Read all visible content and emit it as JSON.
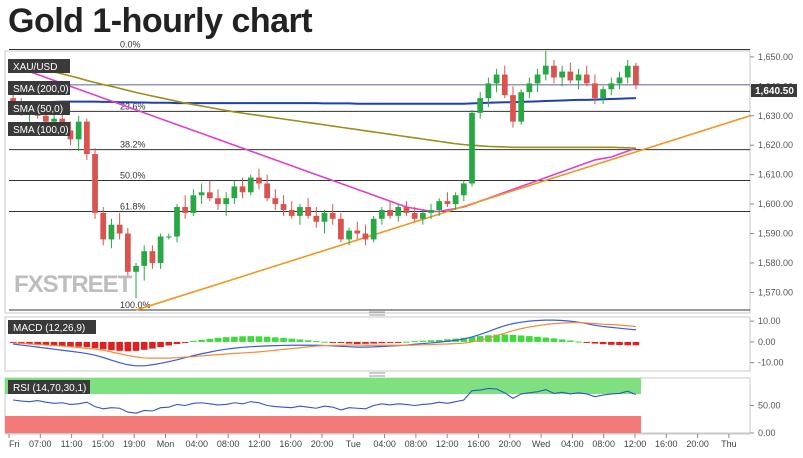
{
  "title": "Gold 1-hourly chart",
  "colors": {
    "up": "#27a844",
    "down": "#d9534f",
    "sma50": "#e040d0",
    "sma100": "#9c8f1a",
    "sma200": "#1f3fb0",
    "trend": "#f0961e",
    "macd_line": "#3b5bdb",
    "signal_line": "#f08c3c",
    "rsi_line": "#2f57c9",
    "overbought": "#7ee07e",
    "oversold": "#f47a7a"
  },
  "legend": {
    "symbol": "XAU/USD",
    "sma200": "SMA (200,0)",
    "sma50": "SMA (50,0)",
    "sma100": "SMA (100,0)"
  },
  "watermark": "FXSTREET",
  "price_label": "1,640.50",
  "chart_data": [
    {
      "type": "candlestick",
      "title": "Gold 1-hourly chart",
      "ylim": [
        1563,
        1652
      ],
      "ytick_labels": [
        "1,650.00",
        "1,640.00",
        "1,630.00",
        "1,620.00",
        "1,610.00",
        "1,600.00",
        "1,590.00",
        "1,580.00",
        "1,570.00"
      ],
      "ytick_values": [
        1650,
        1640,
        1630,
        1620,
        1610,
        1600,
        1590,
        1580,
        1570
      ],
      "x_ticks": [
        "Fri",
        "07:00",
        "11:00",
        "15:00",
        "19:00",
        "Mon",
        "04:00",
        "08:00",
        "12:00",
        "16:00",
        "20:00",
        "Tue",
        "04:00",
        "08:00",
        "12:00",
        "16:00",
        "20:00",
        "Wed",
        "04:00",
        "08:00",
        "12:00",
        "16:00",
        "20:00",
        "Thu"
      ],
      "fib_levels": [
        {
          "label": "0.0%",
          "value": 1652.5
        },
        {
          "label": "23.6%",
          "value": 1631.5
        },
        {
          "label": "38.2%",
          "value": 1618.5
        },
        {
          "label": "50.0%",
          "value": 1608
        },
        {
          "label": "61.8%",
          "value": 1597.5
        },
        {
          "label": "100.0%",
          "value": 1564
        }
      ],
      "current_price": 1640.5,
      "candles_ohlc": [
        [
          1636,
          1638,
          1633,
          1634
        ],
        [
          1634,
          1636,
          1630,
          1631
        ],
        [
          1631,
          1634,
          1628,
          1632
        ],
        [
          1632,
          1635,
          1629,
          1630
        ],
        [
          1630,
          1633,
          1627,
          1628
        ],
        [
          1628,
          1631,
          1625,
          1629
        ],
        [
          1629,
          1632,
          1624,
          1625
        ],
        [
          1625,
          1628,
          1620,
          1622
        ],
        [
          1622,
          1630,
          1618,
          1628
        ],
        [
          1628,
          1629,
          1615,
          1617
        ],
        [
          1617,
          1619,
          1595,
          1597
        ],
        [
          1597,
          1599,
          1586,
          1588
        ],
        [
          1588,
          1595,
          1585,
          1593
        ],
        [
          1593,
          1597,
          1588,
          1590
        ],
        [
          1590,
          1592,
          1575,
          1577
        ],
        [
          1577,
          1580,
          1568,
          1579
        ],
        [
          1579,
          1586,
          1574,
          1584
        ],
        [
          1584,
          1586,
          1578,
          1580
        ],
        [
          1580,
          1590,
          1578,
          1589
        ],
        [
          1589,
          1590,
          1588,
          1589
        ],
        [
          1589,
          1600,
          1587,
          1599
        ],
        [
          1599,
          1603,
          1595,
          1597
        ],
        [
          1597,
          1605,
          1596,
          1603
        ],
        [
          1603,
          1607,
          1600,
          1604
        ],
        [
          1604,
          1608,
          1601,
          1602
        ],
        [
          1602,
          1605,
          1598,
          1600
        ],
        [
          1600,
          1604,
          1596,
          1602
        ],
        [
          1602,
          1608,
          1600,
          1606
        ],
        [
          1606,
          1609,
          1602,
          1604
        ],
        [
          1604,
          1610,
          1603,
          1609
        ],
        [
          1609,
          1612,
          1605,
          1607
        ],
        [
          1607,
          1610,
          1601,
          1602
        ],
        [
          1602,
          1605,
          1598,
          1600
        ],
        [
          1600,
          1603,
          1596,
          1598
        ],
        [
          1598,
          1601,
          1595,
          1596
        ],
        [
          1596,
          1600,
          1593,
          1599
        ],
        [
          1599,
          1602,
          1595,
          1596
        ],
        [
          1596,
          1599,
          1592,
          1594
        ],
        [
          1594,
          1598,
          1590,
          1597
        ],
        [
          1597,
          1600,
          1593,
          1595
        ],
        [
          1595,
          1597,
          1587,
          1588
        ],
        [
          1588,
          1592,
          1586,
          1591
        ],
        [
          1591,
          1594,
          1588,
          1590
        ],
        [
          1590,
          1593,
          1586,
          1588
        ],
        [
          1588,
          1596,
          1587,
          1595
        ],
        [
          1595,
          1599,
          1593,
          1598
        ],
        [
          1598,
          1601,
          1595,
          1596
        ],
        [
          1596,
          1600,
          1594,
          1599
        ],
        [
          1599,
          1601,
          1596,
          1597
        ],
        [
          1597,
          1599,
          1594,
          1595
        ],
        [
          1595,
          1598,
          1593,
          1597
        ],
        [
          1597,
          1600,
          1595,
          1598
        ],
        [
          1598,
          1602,
          1596,
          1601
        ],
        [
          1601,
          1604,
          1599,
          1600
        ],
        [
          1600,
          1604,
          1598,
          1603
        ],
        [
          1603,
          1608,
          1601,
          1607
        ],
        [
          1607,
          1632,
          1606,
          1631
        ],
        [
          1631,
          1638,
          1629,
          1636
        ],
        [
          1636,
          1643,
          1633,
          1641
        ],
        [
          1641,
          1646,
          1638,
          1644
        ],
        [
          1644,
          1647,
          1636,
          1637
        ],
        [
          1637,
          1640,
          1626,
          1628
        ],
        [
          1628,
          1639,
          1627,
          1638
        ],
        [
          1638,
          1643,
          1636,
          1641
        ],
        [
          1641,
          1646,
          1638,
          1644
        ],
        [
          1644,
          1652,
          1642,
          1647
        ],
        [
          1647,
          1649,
          1641,
          1643
        ],
        [
          1643,
          1647,
          1640,
          1645
        ],
        [
          1645,
          1648,
          1641,
          1642
        ],
        [
          1642,
          1646,
          1639,
          1644
        ],
        [
          1644,
          1647,
          1640,
          1641
        ],
        [
          1641,
          1644,
          1634,
          1636
        ],
        [
          1636,
          1640,
          1634,
          1639
        ],
        [
          1639,
          1643,
          1637,
          1641
        ],
        [
          1641,
          1645,
          1639,
          1643
        ],
        [
          1643,
          1649,
          1641,
          1647
        ],
        [
          1647,
          1648,
          1639,
          1640.5
        ]
      ],
      "series": [
        {
          "name": "SMA (200,0)",
          "values": [
            1634,
            1634.2,
            1634.4,
            1634.5,
            1634.6,
            1634.7,
            1634.8,
            1634.8,
            1634.8,
            1634.8,
            1634.8,
            1634.7,
            1634.7,
            1634.6,
            1634.6,
            1634.5,
            1634.5,
            1634.4,
            1634.4,
            1634.4,
            1634.3,
            1634.3,
            1634.3,
            1634.3,
            1634.3,
            1634.3,
            1634.3,
            1634.3,
            1634.3,
            1634.3,
            1634.3,
            1634.3,
            1634.3,
            1634.3,
            1634.3,
            1634.3,
            1634.3,
            1634.3,
            1634.2,
            1634.2,
            1634.2,
            1634.2,
            1634.1,
            1634.1,
            1634.1,
            1634.1,
            1634.1,
            1634.1,
            1634.1,
            1634.1,
            1634.1,
            1634.1,
            1634.1,
            1634.1,
            1634.1,
            1634.1,
            1634.2,
            1634.3,
            1634.4,
            1634.5,
            1634.6,
            1634.6,
            1634.7,
            1634.8,
            1634.9,
            1635,
            1635.1,
            1635.2,
            1635.3,
            1635.4,
            1635.4,
            1635.5,
            1635.6,
            1635.7,
            1635.8,
            1635.9,
            1636
          ]
        },
        {
          "name": "SMA (50,0)",
          "values": [
            1647,
            1646,
            1645,
            1644,
            1643,
            1642,
            1641,
            1640,
            1639,
            1638,
            1637,
            1636,
            1635,
            1634,
            1633,
            1632,
            1631,
            1630,
            1629,
            1628,
            1627,
            1626,
            1625,
            1624,
            1623,
            1622,
            1621,
            1620,
            1619,
            1618,
            1617,
            1616,
            1615,
            1614,
            1613,
            1612,
            1611,
            1610,
            1609,
            1608,
            1607,
            1606,
            1605,
            1604,
            1603,
            1602,
            1601,
            1600,
            1599,
            1598.5,
            1598,
            1597.5,
            1597.5,
            1598,
            1598.5,
            1599,
            1600,
            1601,
            1602,
            1603,
            1604,
            1605,
            1606,
            1607,
            1608,
            1609,
            1610,
            1611,
            1612,
            1613,
            1614,
            1615,
            1615.5,
            1616,
            1617,
            1618,
            1619
          ]
        },
        {
          "name": "SMA (100,0)",
          "values": [
            1648,
            1647.5,
            1647,
            1646.3,
            1645.6,
            1644.9,
            1644.2,
            1643.5,
            1642.8,
            1642,
            1641.3,
            1640.6,
            1640,
            1639.3,
            1638.6,
            1637.9,
            1637.3,
            1636.7,
            1636.1,
            1635.5,
            1634.9,
            1634.3,
            1633.8,
            1633.3,
            1632.8,
            1632.3,
            1631.8,
            1631.3,
            1630.9,
            1630.5,
            1630.1,
            1629.7,
            1629.3,
            1628.9,
            1628.5,
            1628.1,
            1627.7,
            1627.3,
            1626.9,
            1626.5,
            1626.1,
            1625.7,
            1625.3,
            1624.9,
            1624.5,
            1624.1,
            1623.7,
            1623.3,
            1622.9,
            1622.5,
            1622.1,
            1621.7,
            1621.3,
            1620.9,
            1620.5,
            1620.2,
            1620,
            1619.8,
            1619.6,
            1619.5,
            1619.4,
            1619.3,
            1619.3,
            1619.3,
            1619.3,
            1619.3,
            1619.3,
            1619.3,
            1619.3,
            1619.3,
            1619.3,
            1619.3,
            1619.3,
            1619.3,
            1619.2,
            1619.1,
            1619
          ]
        },
        {
          "name": "trend",
          "values": [
            1564,
            1630
          ]
        }
      ]
    },
    {
      "type": "bar",
      "title": "MACD (12,26,9)",
      "ylim": [
        -14,
        12
      ],
      "ytick_labels": [
        "10.00",
        "0.00",
        "-10.00"
      ],
      "ytick_values": [
        10,
        0,
        -10
      ],
      "values": [
        -0.5,
        -0.8,
        -1,
        -1.3,
        -1.5,
        -1.8,
        -2,
        -2.2,
        -2.3,
        -2.5,
        -3,
        -3.5,
        -4,
        -4.3,
        -4.5,
        -4.3,
        -3.8,
        -3.2,
        -2.5,
        -1.7,
        -1,
        -0.3,
        0.5,
        1,
        1.5,
        2,
        2.3,
        2.5,
        2.7,
        2.8,
        2.7,
        2.5,
        2.2,
        1.9,
        1.6,
        1.2,
        0.8,
        0.4,
        0.1,
        -0.2,
        -0.5,
        -0.8,
        -1,
        -0.9,
        -0.8,
        -0.6,
        -0.4,
        -0.2,
        0.1,
        0.4,
        0.6,
        0.8,
        1,
        1.3,
        1.6,
        2,
        2.4,
        2.8,
        3.2,
        3.5,
        3.6,
        3.4,
        3.1,
        2.8,
        2.5,
        2.1,
        1.7,
        1.2,
        0.7,
        0.2,
        -0.3,
        -0.8,
        -1.1,
        -1.4,
        -1.5,
        -1.6,
        -1.6
      ],
      "series": [
        {
          "name": "MACD",
          "values": [
            -1,
            -1.5,
            -2,
            -2.5,
            -3,
            -3.5,
            -4,
            -4.5,
            -5,
            -5.6,
            -6.4,
            -7.5,
            -8.8,
            -10,
            -11,
            -11.5,
            -11.5,
            -11,
            -10.3,
            -9.5,
            -8.6,
            -7.6,
            -6.6,
            -5.7,
            -4.9,
            -4.1,
            -3.5,
            -3,
            -2.6,
            -2.3,
            -2.1,
            -1.9,
            -1.8,
            -1.7,
            -1.6,
            -1.6,
            -1.6,
            -1.6,
            -1.7,
            -1.9,
            -2.1,
            -2.3,
            -2.5,
            -2.5,
            -2.4,
            -2.2,
            -2,
            -1.8,
            -1.5,
            -1.1,
            -0.8,
            -0.5,
            -0.1,
            0.3,
            0.8,
            1.4,
            2.4,
            3.6,
            5,
            6.5,
            7.8,
            8.8,
            9.5,
            10,
            10.3,
            10.5,
            10.5,
            10.3,
            10,
            9.5,
            8.8,
            8,
            7.4,
            7,
            6.6,
            6.2,
            5.8
          ]
        },
        {
          "name": "Signal",
          "values": [
            -0.5,
            -0.7,
            -1,
            -1.2,
            -1.5,
            -1.7,
            -2,
            -2.3,
            -2.7,
            -3.1,
            -3.4,
            -4,
            -4.8,
            -5.7,
            -6.5,
            -7.2,
            -7.7,
            -7.8,
            -7.8,
            -7.8,
            -7.6,
            -7.3,
            -7.1,
            -6.7,
            -6.4,
            -6.1,
            -5.8,
            -5.5,
            -5.3,
            -5.1,
            -4.8,
            -4.4,
            -4,
            -3.6,
            -3.2,
            -2.8,
            -2.4,
            -2,
            -1.8,
            -1.7,
            -1.6,
            -1.5,
            -1.5,
            -1.6,
            -1.6,
            -1.6,
            -1.6,
            -1.6,
            -1.6,
            -1.5,
            -1.4,
            -1.3,
            -1.1,
            -1,
            -0.8,
            -0.6,
            0,
            0.8,
            1.8,
            3,
            4.2,
            5.4,
            6.4,
            7.2,
            7.8,
            8.4,
            8.8,
            9.1,
            9.3,
            9.3,
            9.1,
            8.8,
            8.5,
            8.4,
            8.1,
            7.8,
            7.4
          ]
        }
      ]
    },
    {
      "type": "line",
      "title": "RSI (14,70,30,1)",
      "ylim": [
        0,
        100
      ],
      "ytick_labels": [
        "50.00",
        "0.00"
      ],
      "ytick_values": [
        50,
        0
      ],
      "series": [
        {
          "name": "RSI",
          "values": [
            60,
            58,
            57,
            59,
            56,
            54,
            55,
            52,
            53,
            56,
            48,
            44,
            46,
            45,
            38,
            36,
            41,
            40,
            46,
            47,
            52,
            50,
            54,
            55,
            53,
            51,
            52,
            55,
            53,
            57,
            55,
            50,
            48,
            47,
            46,
            49,
            47,
            45,
            49,
            47,
            42,
            46,
            45,
            44,
            50,
            53,
            51,
            53,
            52,
            50,
            52,
            53,
            56,
            54,
            57,
            60,
            77,
            78,
            81,
            80,
            73,
            63,
            71,
            73,
            75,
            79,
            72,
            74,
            71,
            73,
            71,
            66,
            69,
            71,
            72,
            76,
            70
          ]
        }
      ]
    }
  ]
}
